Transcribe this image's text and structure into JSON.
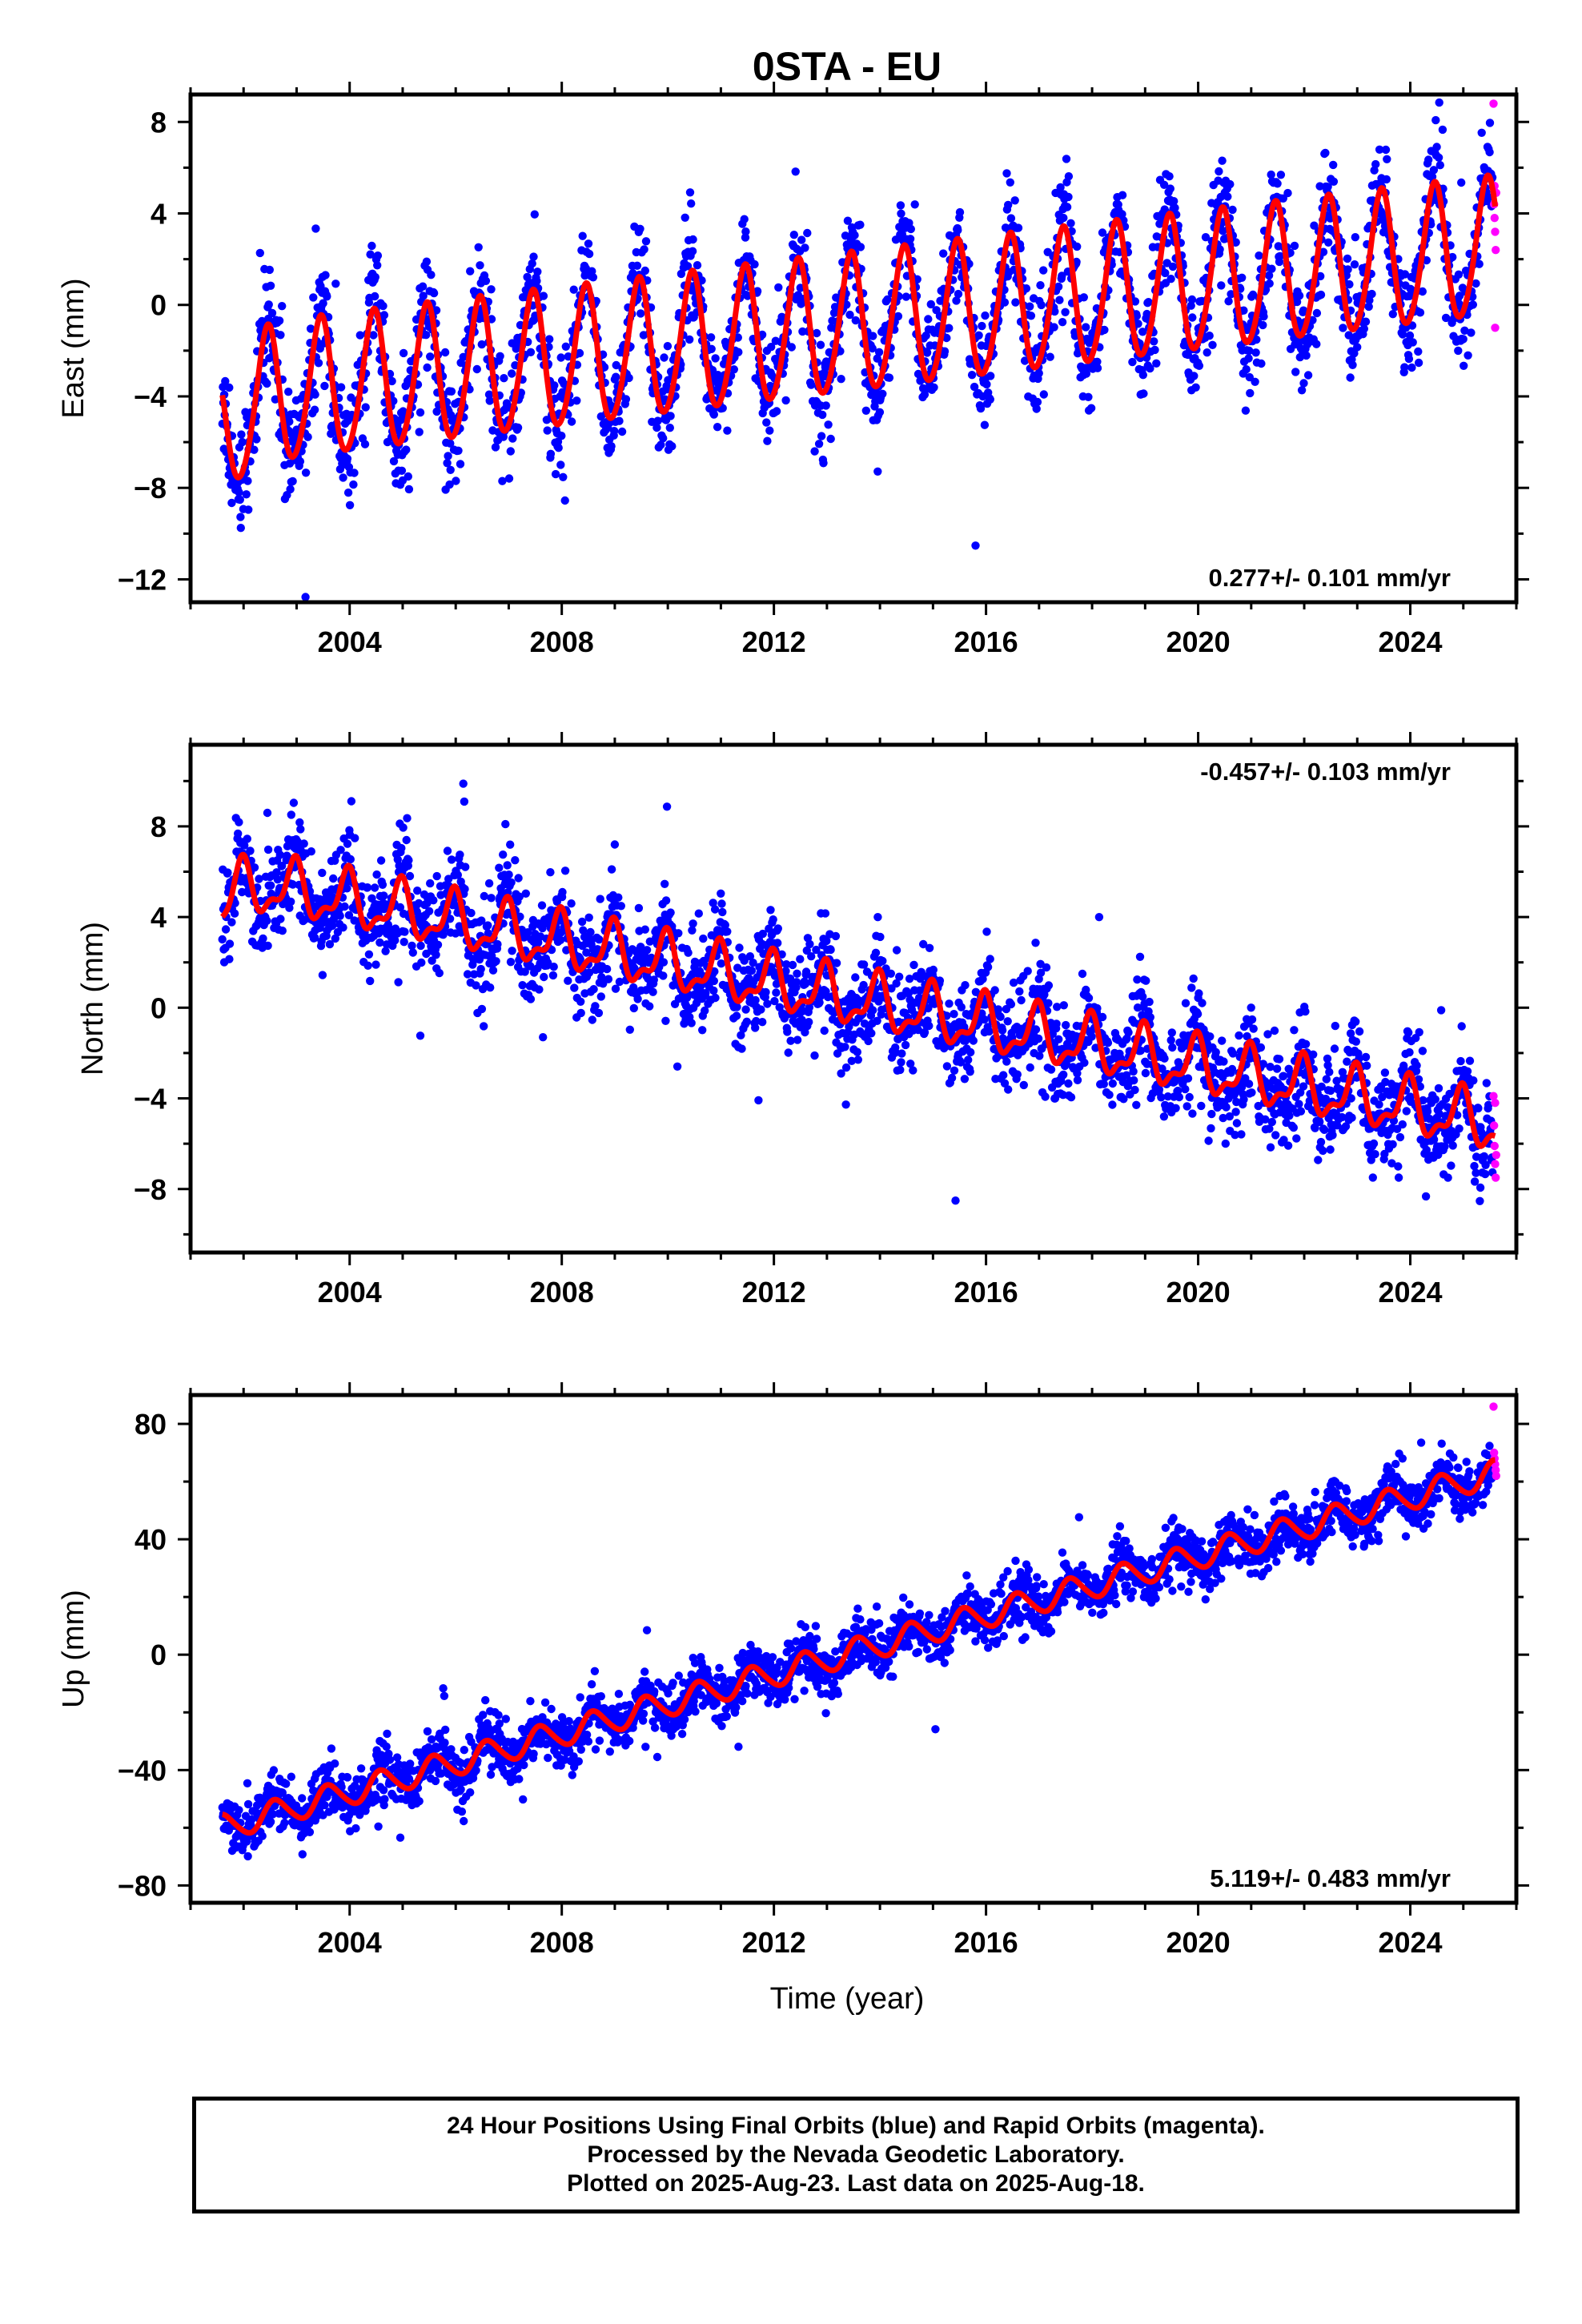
{
  "colors": {
    "final_orbits": "#0000ff",
    "rapid_orbits": "#ff00ff",
    "model_fit": "#ff0000",
    "frame": "#000000"
  },
  "chart_data": [
    {
      "type": "scatter",
      "title": "0STA - EU",
      "ylabel": "East (mm)",
      "xlabel": "",
      "xlim": [
        2001.0,
        2026.0
      ],
      "ylim": [
        -13.0,
        9.2
      ],
      "x_ticks": [
        2004,
        2008,
        2012,
        2016,
        2020,
        2024
      ],
      "y_ticks": [
        -12,
        -8,
        -4,
        0,
        4,
        8
      ],
      "y_tick_labels": [
        "−12",
        "−8",
        "−4",
        "0",
        "4",
        "8"
      ],
      "velocity_label": "0.277+/- 0.101 mm/yr",
      "velocity_position": "bottom-right",
      "model": {
        "start": 2001.6,
        "end": 2025.6,
        "intercept_at_2001_6": -4.2,
        "trend_mm_per_yr": 0.277,
        "annual_amplitude": 3.0,
        "annual_peak_year_fraction": 0.45,
        "semiannual_amplitude": 0.3,
        "start_offset": -1.6
      },
      "final_orbits": {
        "start": 2001.6,
        "end": 2025.55,
        "scatter": 1.6
      },
      "rapid_orbits": {
        "x": [
          2025.57,
          2025.58,
          2025.59,
          2025.6,
          2025.61,
          2025.6,
          2025.59,
          2025.62
        ],
        "y": [
          8.8,
          4.4,
          3.8,
          3.2,
          2.4,
          -1.0,
          5.2,
          4.9
        ]
      }
    },
    {
      "type": "scatter",
      "title": "",
      "ylabel": "North (mm)",
      "xlabel": "",
      "xlim": [
        2001.0,
        2026.0
      ],
      "ylim": [
        -10.8,
        11.6
      ],
      "x_ticks": [
        2004,
        2008,
        2012,
        2016,
        2020,
        2024
      ],
      "y_ticks": [
        -8,
        -4,
        0,
        4,
        8
      ],
      "y_tick_labels": [
        "−8",
        "−4",
        "0",
        "4",
        "8"
      ],
      "velocity_label": "-0.457+/- 0.103 mm/yr",
      "velocity_position": "top-right",
      "model": {
        "start": 2001.6,
        "end": 2025.6,
        "intercept_at_2001_6": 5.8,
        "trend_mm_per_yr": -0.457,
        "annual_amplitude": 1.1,
        "annual_peak_year_fraction": 0.95,
        "semiannual_amplitude": 0.5,
        "start_offset": -1.3
      },
      "final_orbits": {
        "start": 2001.6,
        "end": 2025.55,
        "scatter": 1.4
      },
      "rapid_orbits": {
        "x": [
          2025.57,
          2025.58,
          2025.59,
          2025.6,
          2025.61,
          2025.6,
          2025.62
        ],
        "y": [
          -3.9,
          -5.2,
          -6.1,
          -6.9,
          -7.5,
          -4.2,
          -6.5
        ]
      }
    },
    {
      "type": "scatter",
      "title": "",
      "ylabel": "Up (mm)",
      "xlabel": "Time (year)",
      "xlim": [
        2001.0,
        2026.0
      ],
      "ylim": [
        -86.0,
        90.0
      ],
      "x_ticks": [
        2004,
        2008,
        2012,
        2016,
        2020,
        2024
      ],
      "y_ticks": [
        -80,
        -40,
        0,
        40,
        80
      ],
      "y_tick_labels": [
        "−80",
        "−40",
        "0",
        "40",
        "80"
      ],
      "velocity_label": "5.119+/- 0.483 mm/yr",
      "velocity_position": "bottom-right",
      "model": {
        "start": 2001.6,
        "end": 2025.6,
        "intercept_at_2001_6": -60.0,
        "trend_mm_per_yr": 5.119,
        "annual_amplitude": 4.5,
        "annual_peak_year_fraction": 0.6,
        "semiannual_amplitude": 0.5,
        "start_offset": 0
      },
      "final_orbits": {
        "start": 2001.6,
        "end": 2025.55,
        "scatter": 6.0
      },
      "rapid_orbits": {
        "x": [
          2025.57,
          2025.58,
          2025.59,
          2025.6,
          2025.61,
          2025.62
        ],
        "y": [
          86,
          70,
          68,
          66,
          64,
          62
        ]
      }
    }
  ],
  "caption": {
    "line1": "24 Hour Positions Using Final Orbits (blue) and Rapid Orbits (magenta).",
    "line2": "Processed by the Nevada Geodetic Laboratory.",
    "line3": "Plotted on 2025-Aug-23. Last data on 2025-Aug-18."
  }
}
